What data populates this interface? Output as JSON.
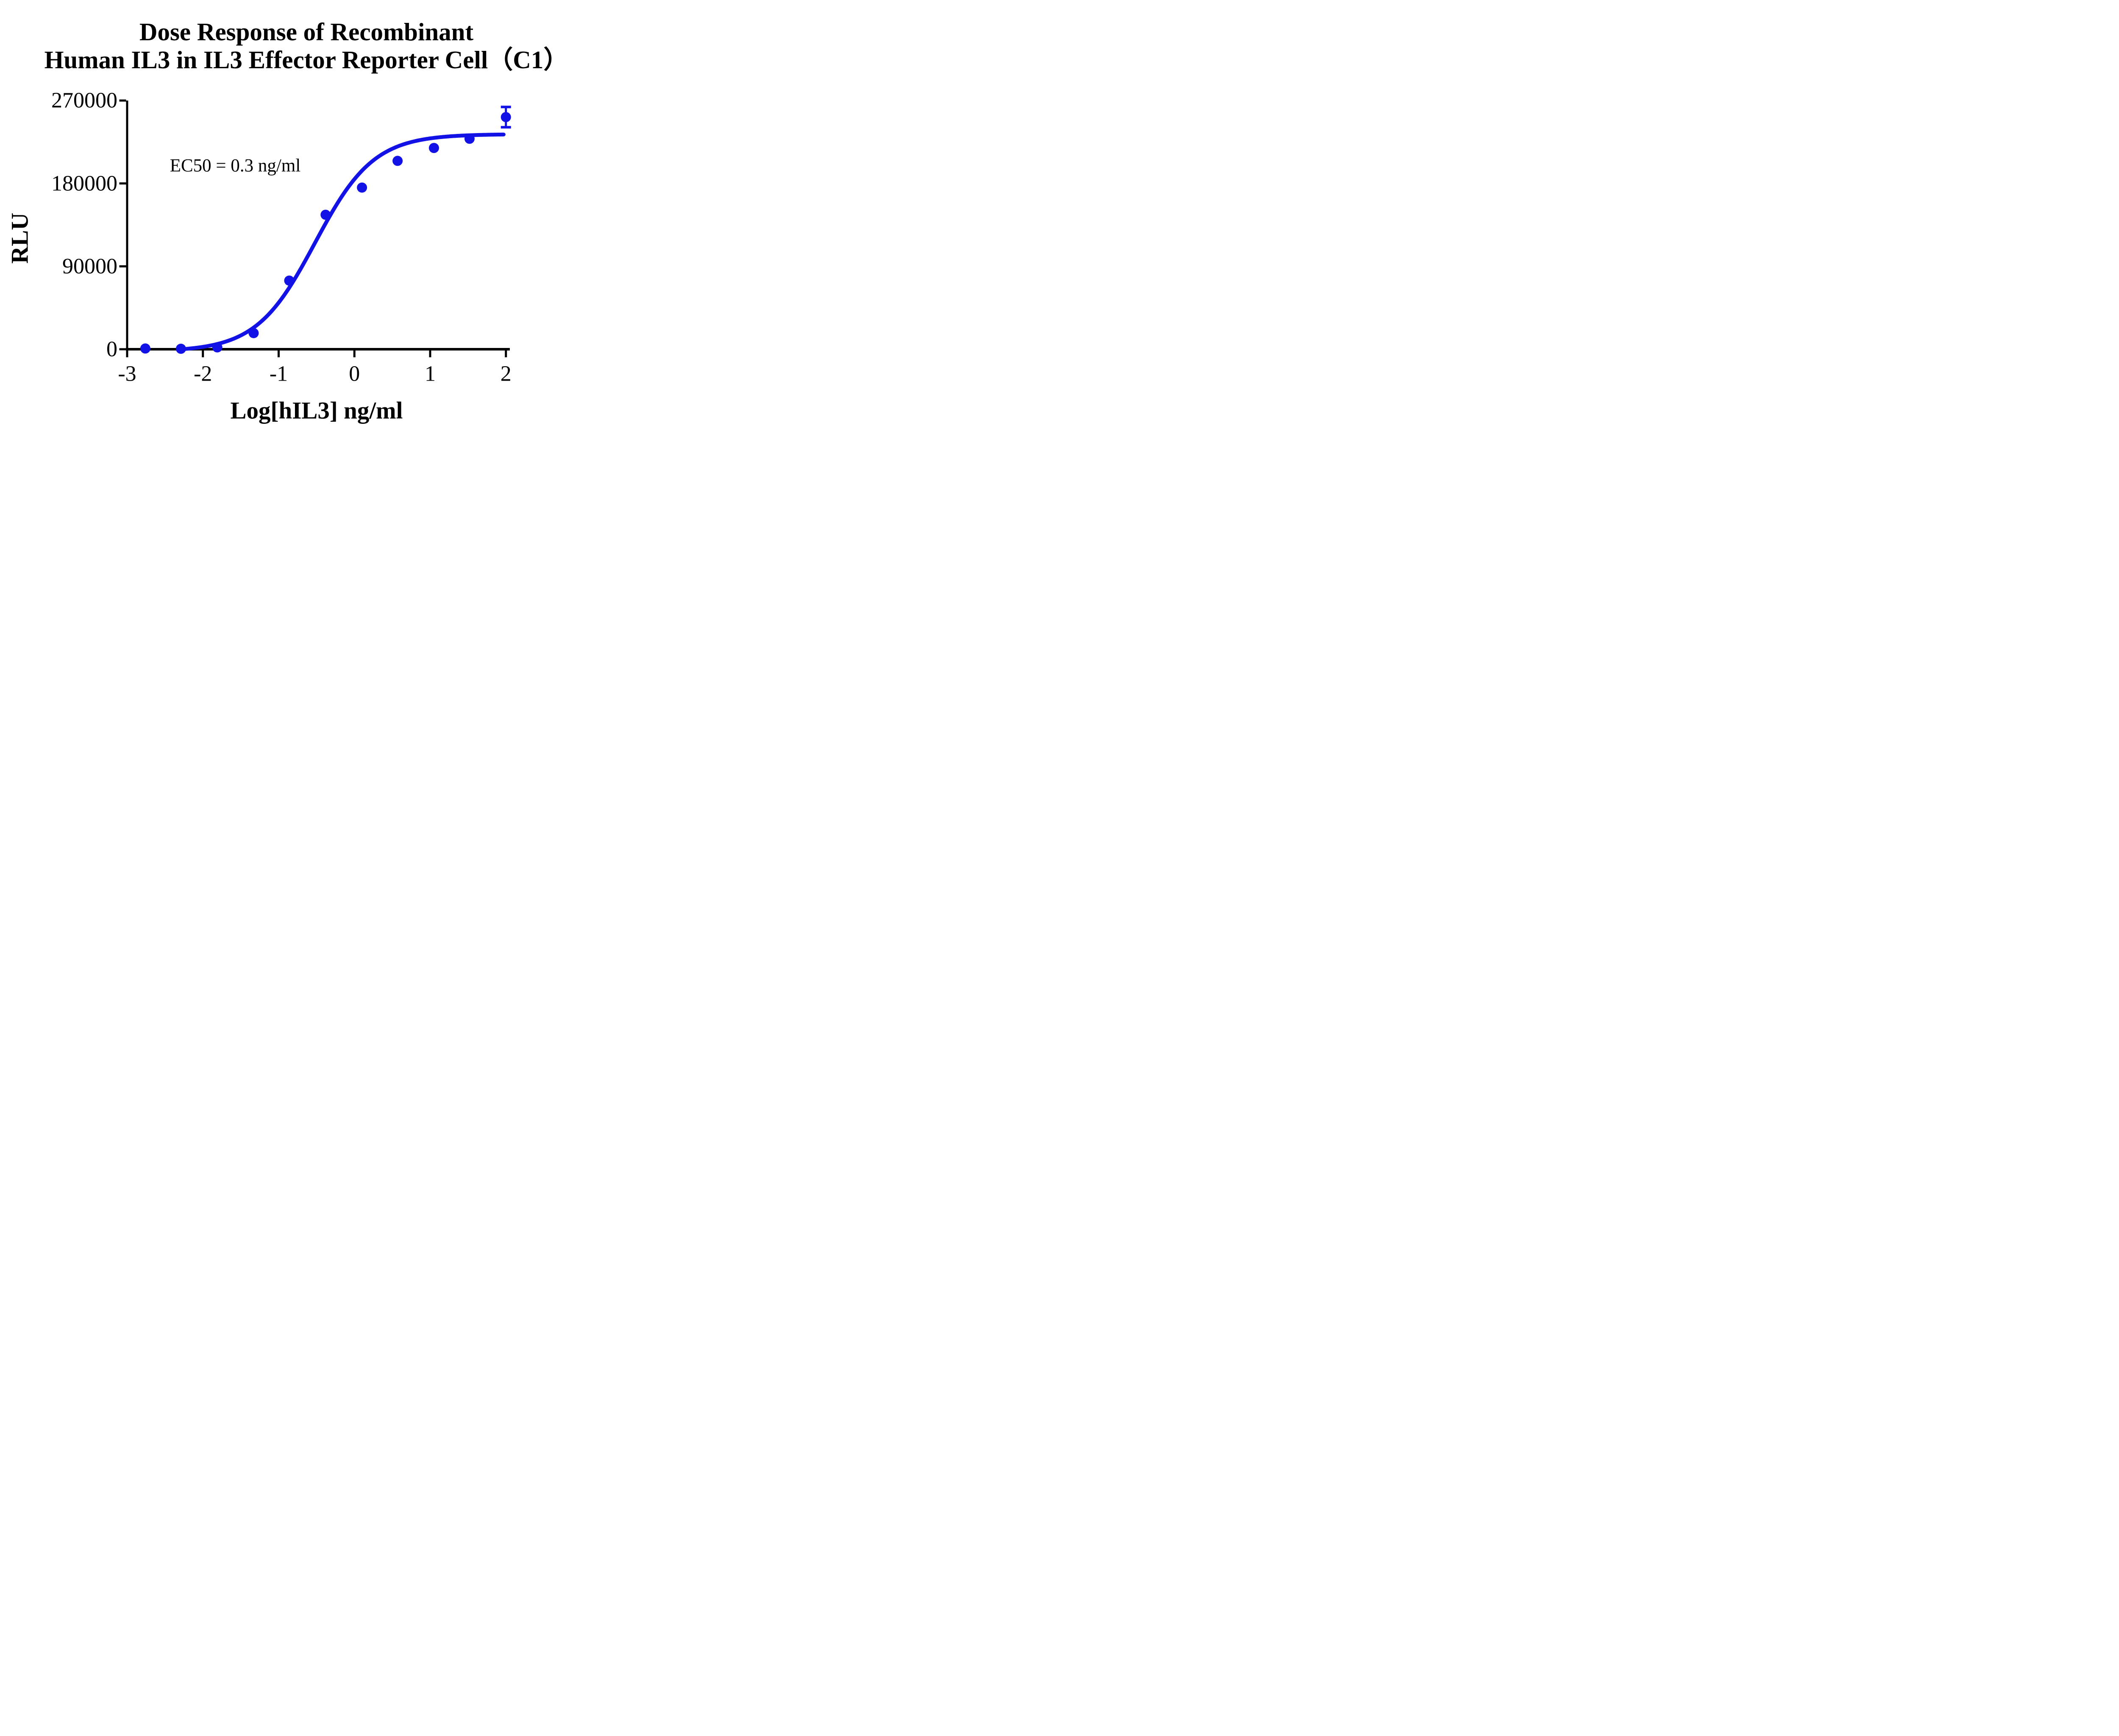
{
  "chart_data": {
    "type": "scatter",
    "title_lines": [
      "Dose Response of Recombinant",
      "Human IL3 in IL3 Effector Reporter Cell（C1）"
    ],
    "xlabel": "Log[hIL3] ng/ml",
    "ylabel": "RLU",
    "annotation": "EC50 = 0.3 ng/ml",
    "ec50_value": "0.3 ng/ml",
    "x_ticks": [
      -3,
      -2,
      -1,
      0,
      1,
      2
    ],
    "y_ticks": [
      0,
      90000,
      180000,
      270000
    ],
    "xlim": [
      -3,
      2
    ],
    "ylim": [
      0,
      270000
    ],
    "grid": false,
    "legend_position": "none",
    "series_name": "Recombinant Human IL3",
    "points": [
      {
        "x": -2.76,
        "y": 800
      },
      {
        "x": -2.29,
        "y": 500
      },
      {
        "x": -1.81,
        "y": 2000
      },
      {
        "x": -1.33,
        "y": 17500
      },
      {
        "x": -0.86,
        "y": 74500
      },
      {
        "x": -0.38,
        "y": 146000
      },
      {
        "x": 0.1,
        "y": 175500
      },
      {
        "x": 0.57,
        "y": 204500
      },
      {
        "x": 1.05,
        "y": 218500
      },
      {
        "x": 1.52,
        "y": 228500
      },
      {
        "x": 2.0,
        "y": 252000,
        "y_err": 11000
      }
    ],
    "fit_curve": {
      "model": "four_parameter_logistic",
      "bottom": -2500,
      "top": 233500,
      "log_ec50": -0.52,
      "hill_slope": 1.12,
      "x_start": -2.33,
      "x_end": 1.98
    },
    "colors": {
      "series": "#1212E6",
      "axis": "#000000",
      "text": "#000000",
      "background": "#FFFFFF"
    }
  }
}
